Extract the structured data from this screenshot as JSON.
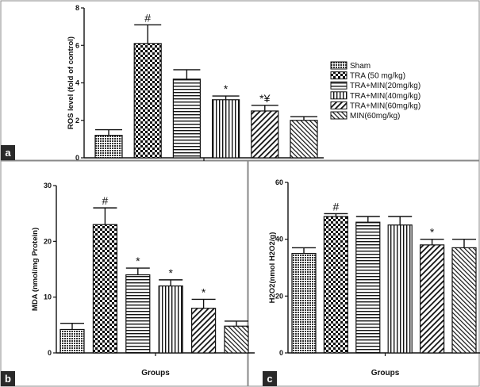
{
  "colors": {
    "panel_label_bg": "#2a2a2a",
    "bar_stroke": "#111111",
    "border": "#888888"
  },
  "legend": {
    "entries": [
      "Sham",
      "TRA (50 mg/kg)",
      "TRA+MIN(20mg/kg)",
      "TRA+MIN(40mg/kg)",
      "TRA+MIN(60mg/kg)",
      "MIN(60mg/kg)"
    ],
    "patterns": [
      "pat-dense",
      "pat-check",
      "pat-horiz",
      "pat-vert",
      "pat-diag",
      "pat-diag-fine"
    ],
    "position": "right of panel a"
  },
  "chart_data": [
    {
      "panel": "a",
      "type": "bar",
      "categories": [
        "Sham",
        "TRA (50 mg/kg)",
        "TRA+MIN(20mg/kg)",
        "TRA+MIN(40mg/kg)",
        "TRA+MIN(60mg/kg)",
        "MIN(60mg/kg)"
      ],
      "values": [
        1.2,
        6.1,
        4.2,
        3.1,
        2.5,
        2.0
      ],
      "errors": [
        0.3,
        1.0,
        0.5,
        0.2,
        0.3,
        0.2
      ],
      "annotations": [
        "",
        "#",
        "",
        "*",
        "*¥",
        ""
      ],
      "ylabel": "ROS level (fold of control)",
      "xlabel": "",
      "ylim": [
        0,
        8
      ],
      "yticks": [
        0,
        2,
        4,
        6,
        8
      ]
    },
    {
      "panel": "b",
      "type": "bar",
      "categories": [
        "Sham",
        "TRA (50 mg/kg)",
        "TRA+MIN(20mg/kg)",
        "TRA+MIN(40mg/kg)",
        "TRA+MIN(60mg/kg)",
        "MIN(60mg/kg)"
      ],
      "values": [
        4.2,
        23,
        14,
        12,
        8,
        4.8
      ],
      "errors": [
        1.1,
        3.0,
        1.2,
        1.1,
        1.6,
        0.9
      ],
      "annotations": [
        "",
        "#",
        "*",
        "*",
        "*",
        ""
      ],
      "ylabel": "MDA (nmol/mg Protein)",
      "xlabel": "Groups",
      "ylim": [
        0,
        30
      ],
      "yticks": [
        0,
        10,
        20,
        30
      ]
    },
    {
      "panel": "c",
      "type": "bar",
      "categories": [
        "Sham",
        "TRA (50 mg/kg)",
        "TRA+MIN(20mg/kg)",
        "TRA+MIN(40mg/kg)",
        "TRA+MIN(60mg/kg)",
        "MIN(60mg/kg)"
      ],
      "values": [
        35,
        48,
        46,
        45,
        38,
        37
      ],
      "errors": [
        2,
        1,
        2,
        3,
        2,
        3
      ],
      "annotations": [
        "",
        "#",
        "",
        "",
        "*",
        ""
      ],
      "ylabel": "H2O2(nmol H2O2/g)",
      "xlabel": "Groups",
      "ylim": [
        0,
        60
      ],
      "yticks": [
        0,
        20,
        40,
        60
      ]
    }
  ]
}
